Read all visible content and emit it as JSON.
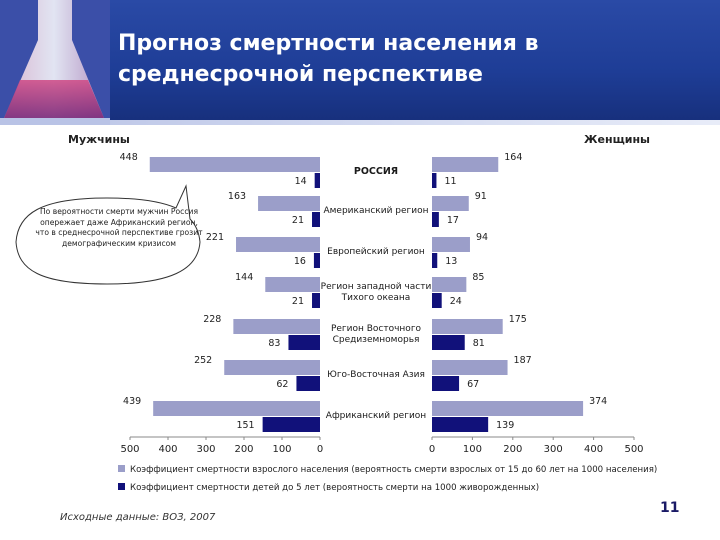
{
  "title": {
    "line1": "Прогноз смертности населения в",
    "line2": "среднесрочной перспективе"
  },
  "callout": {
    "text": "По вероятности смерти мужчин Россия опережает даже Африканский регион, что в среднесрочной перспективе грозит демографическим кризисом"
  },
  "source": "Исходные данные: ВОЗ, 2007",
  "page_number": "11",
  "colors": {
    "adult": "#9b9ec9",
    "child": "#11117a",
    "header": "#1e3d96"
  },
  "chart_data": {
    "type": "bar",
    "orientation": "horizontal-butterfly",
    "left_panel_label": "Мужчины",
    "right_panel_label": "Женщины",
    "categories": [
      "РОССИЯ",
      "Американский регион",
      "Европейский регион",
      "Регион западной части Тихого океана",
      "Регион Восточного Средиземноморья",
      "Юго-Восточная Азия",
      "Африканский регион"
    ],
    "series": [
      {
        "name": "Коэффициент смертности взрослого населения (вероятность смерти взрослых от 15 до 60 лет на 1000 населения)",
        "men": [
          448,
          163,
          221,
          144,
          228,
          252,
          439
        ],
        "women": [
          164,
          91,
          94,
          85,
          175,
          187,
          374
        ]
      },
      {
        "name": "Коэффициент смертности детей до 5 лет (вероятность смерти на 1000 живорожденных)",
        "men": [
          14,
          21,
          16,
          21,
          83,
          62,
          151
        ],
        "women": [
          11,
          17,
          13,
          24,
          81,
          67,
          139
        ]
      }
    ],
    "left_axis_ticks": [
      "500",
      "400",
      "300",
      "200",
      "100",
      "0"
    ],
    "right_axis_ticks": [
      "0",
      "100",
      "200",
      "300",
      "400",
      "500"
    ],
    "xlim": [
      0,
      500
    ]
  }
}
